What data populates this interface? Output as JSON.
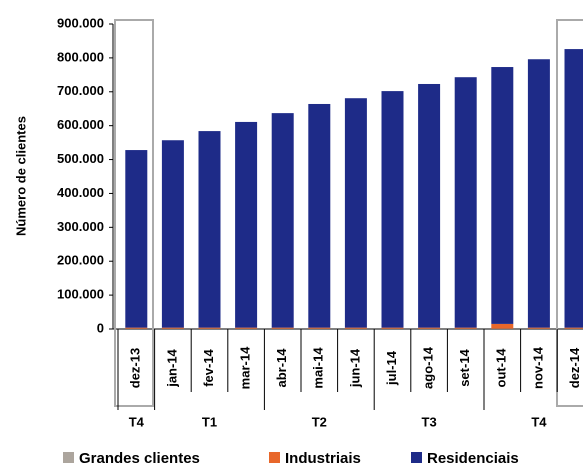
{
  "chart_data": {
    "type": "stacked_bar",
    "y_label": "Número de clientes",
    "categories": [
      "dez-13",
      "jan-14",
      "fev-14",
      "mar-14",
      "abr-14",
      "mai-14",
      "jun-14",
      "jul-14",
      "ago-14",
      "set-14",
      "out-14",
      "nov-14",
      "dez-14"
    ],
    "quarters": [
      "T4",
      "T1",
      "T1",
      "T1",
      "T2",
      "T2",
      "T2",
      "T3",
      "T3",
      "T3",
      "T4",
      "T4",
      "T4"
    ],
    "series": [
      {
        "name": "Grandes clientes",
        "color": "#aca59d",
        "values": [
          1000,
          1000,
          1000,
          1000,
          1000,
          1000,
          1000,
          1000,
          1000,
          1000,
          1000,
          1000,
          1000
        ]
      },
      {
        "name": "Industriais",
        "color": "#e8672a",
        "values": [
          3000,
          3000,
          3000,
          3000,
          3000,
          3000,
          3000,
          3000,
          3000,
          3000,
          14000,
          3000,
          3000
        ]
      },
      {
        "name": "Residenciais",
        "color": "#1e2b88",
        "values": [
          524000,
          553000,
          580000,
          607000,
          633000,
          660000,
          677000,
          698000,
          719000,
          739000,
          758000,
          792000,
          822000
        ]
      }
    ],
    "ylim": [
      0,
      900000
    ],
    "yticks": [
      0,
      {
        "value": 100000,
        "label": "100.000"
      },
      {
        "value": 200000,
        "label": "200.000"
      },
      {
        "value": 300000,
        "label": "300.000"
      },
      {
        "value": 400000,
        "label": "400.000"
      },
      {
        "value": 500000,
        "label": "500.000"
      },
      {
        "value": 600000,
        "label": "600.000"
      },
      {
        "value": 700000,
        "label": "700.000"
      },
      {
        "value": 800000,
        "label": "800.000"
      },
      {
        "value": 900000,
        "label": "900.000"
      }
    ]
  }
}
